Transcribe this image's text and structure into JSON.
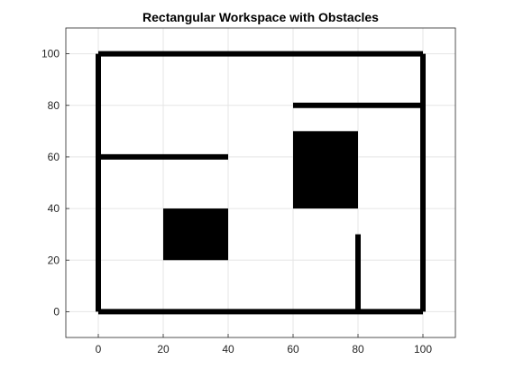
{
  "chart_data": {
    "type": "line",
    "title": "Rectangular Workspace with Obstacles",
    "xlabel": "",
    "ylabel": "",
    "xlim": [
      -10,
      110
    ],
    "ylim": [
      -10,
      110
    ],
    "xticks": [
      0,
      20,
      40,
      60,
      80,
      100
    ],
    "yticks": [
      0,
      20,
      40,
      60,
      80,
      100
    ],
    "grid": true,
    "walls": [
      {
        "x": [
          0,
          100
        ],
        "y": [
          0,
          0
        ]
      },
      {
        "x": [
          100,
          100
        ],
        "y": [
          0,
          100
        ]
      },
      {
        "x": [
          0,
          100
        ],
        "y": [
          100,
          100
        ]
      },
      {
        "x": [
          0,
          0
        ],
        "y": [
          0,
          100
        ]
      },
      {
        "x": [
          0,
          40
        ],
        "y": [
          60,
          60
        ]
      },
      {
        "x": [
          60,
          100
        ],
        "y": [
          80,
          80
        ]
      },
      {
        "x": [
          80,
          80
        ],
        "y": [
          0,
          30
        ]
      }
    ],
    "obstacles": [
      {
        "x": [
          20,
          40
        ],
        "y": [
          20,
          40
        ]
      },
      {
        "x": [
          60,
          80
        ],
        "y": [
          40,
          70
        ]
      }
    ]
  },
  "colors": {
    "wall": "#000000",
    "obstacle": "#000000",
    "grid": "#e5e5e5",
    "axis": "#262626"
  }
}
